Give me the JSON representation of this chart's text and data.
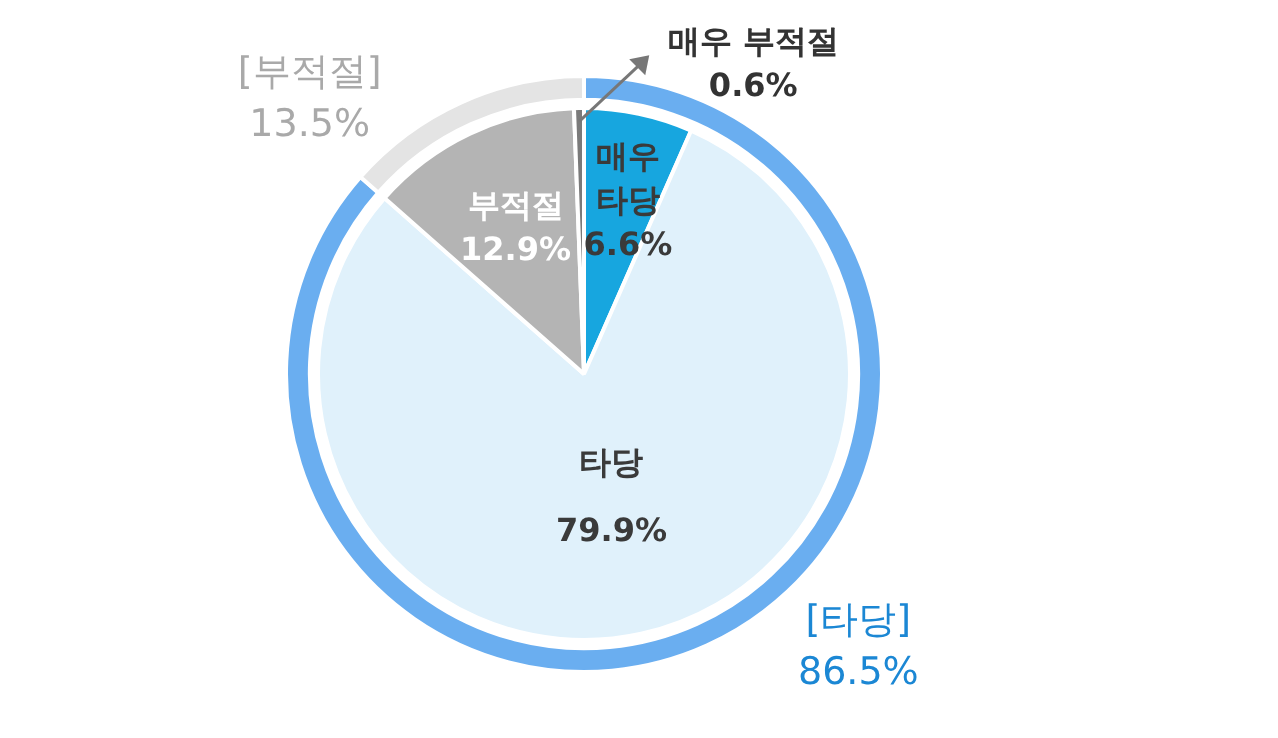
{
  "chart_data": [
    {
      "type": "pie",
      "categories": [
        "매우\n타당",
        "타당",
        "부적절",
        "매우 부적절"
      ],
      "values": [
        6.6,
        79.9,
        12.9,
        0.6
      ],
      "colors": [
        "#17a6df",
        "#e0f1fb",
        "#b4b4b4",
        "#7a7a7a"
      ],
      "value_labels": [
        "6.6%",
        "79.9%",
        "12.9%",
        "0.6%"
      ],
      "legend": false
    },
    {
      "type": "donut",
      "categories": [
        "[타당]",
        "[부적절]"
      ],
      "values": [
        86.5,
        13.5
      ],
      "colors": [
        "#6aaef0",
        "#e4e4e4"
      ],
      "value_labels": [
        "86.5%",
        "13.5%"
      ],
      "legend": false
    }
  ]
}
